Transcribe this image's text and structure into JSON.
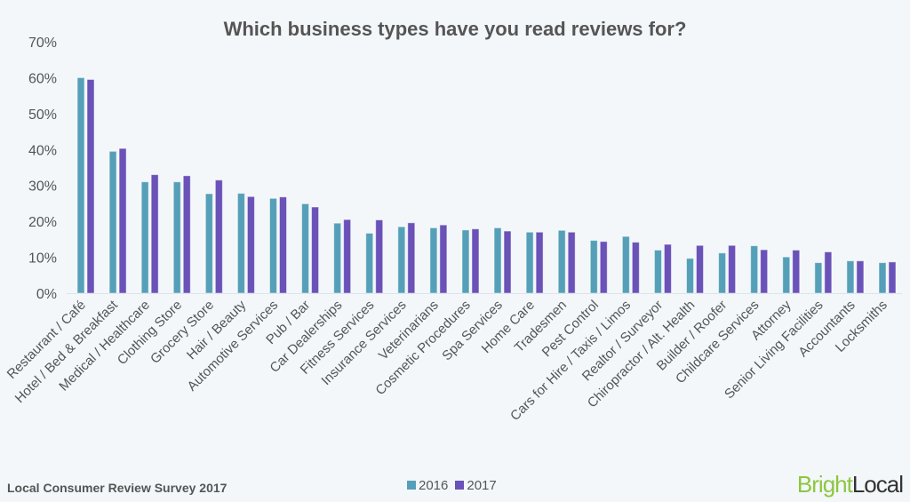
{
  "chart_data": {
    "type": "bar",
    "title": "Which business types have you read reviews for?",
    "xlabel": "",
    "ylabel": "",
    "ylim": [
      0,
      70
    ],
    "yticks": [
      "0%",
      "10%",
      "20%",
      "30%",
      "40%",
      "50%",
      "60%",
      "70%"
    ],
    "legend_position": "bottom",
    "grid": false,
    "categories": [
      "Restaurant / Café",
      "Hotel / Bed & Breakfast",
      "Medical / Healthcare",
      "Clothing Store",
      "Grocery Store",
      "Hair / Beauty",
      "Automotive Services",
      "Pub / Bar",
      "Car Dealerships",
      "Fitness Services",
      "Insurance Services",
      "Veterinarians",
      "Cosmetic Procedures",
      "Spa Services",
      "Home Care",
      "Tradesmen",
      "Pest Control",
      "Cars for Hire / Taxis / Limos",
      "Realtor / Surveyor",
      "Chiropractor / Alt. Health",
      "Builder / Roofer",
      "Childcare Services",
      "Attorney",
      "Senior Living Facilities",
      "Accountants",
      "Locksmiths"
    ],
    "series": [
      {
        "name": "2016",
        "color": "#55a0b8",
        "values": [
          60,
          39.5,
          31,
          31,
          27.7,
          27.8,
          26.4,
          24.9,
          19.5,
          16.7,
          18.5,
          18.2,
          17.6,
          18.2,
          17,
          17.5,
          14.7,
          15.8,
          12,
          9.7,
          11.2,
          13.2,
          10.1,
          8.5,
          9,
          8.5
        ]
      },
      {
        "name": "2017",
        "color": "#6a52b8",
        "values": [
          59.5,
          40.3,
          33,
          32.7,
          31.5,
          26.9,
          26.8,
          24,
          20.5,
          20.4,
          19.6,
          19,
          17.9,
          17.3,
          17,
          17,
          14.4,
          14.2,
          13.6,
          13.3,
          13.3,
          12.1,
          12,
          11.5,
          9,
          8.7
        ]
      }
    ]
  },
  "footer": {
    "source": "Local Consumer Review Survey 2017"
  },
  "logo": {
    "part1": "Bright",
    "part2": "Local"
  }
}
